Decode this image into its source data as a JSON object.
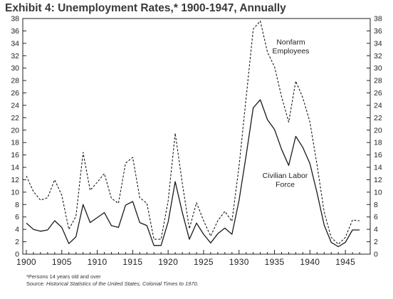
{
  "title": "Exhibit 4: Unemployment Rates,* 1900-1947, Annually",
  "footnote": "*Persons 14 years old and over",
  "source": {
    "prefix": "Source: ",
    "title": "Historical Statistics of the United States, Colonial Times to 1970",
    "suffix": "."
  },
  "colors": {
    "line": "#1a1a1a",
    "axis": "#222222"
  },
  "chart_data": {
    "type": "line",
    "title": "Exhibit 4: Unemployment Rates,* 1900-1947, Annually",
    "xlabel": "",
    "ylabel": "",
    "xlim": [
      1899.5,
      1948.5
    ],
    "ylim": [
      0,
      38
    ],
    "y_ticks": [
      0,
      2,
      4,
      6,
      8,
      10,
      12,
      14,
      16,
      18,
      20,
      22,
      24,
      26,
      28,
      30,
      32,
      34,
      36,
      38
    ],
    "x_ticks": [
      1900,
      1905,
      1910,
      1915,
      1920,
      1925,
      1930,
      1935,
      1940,
      1945
    ],
    "y_axis_both_sides": true,
    "grid": false,
    "x": [
      1900,
      1901,
      1902,
      1903,
      1904,
      1905,
      1906,
      1907,
      1908,
      1909,
      1910,
      1911,
      1912,
      1913,
      1914,
      1915,
      1916,
      1917,
      1918,
      1919,
      1920,
      1921,
      1922,
      1923,
      1924,
      1925,
      1926,
      1927,
      1928,
      1929,
      1930,
      1931,
      1932,
      1933,
      1934,
      1935,
      1936,
      1937,
      1938,
      1939,
      1940,
      1941,
      1942,
      1943,
      1944,
      1945,
      1946,
      1947
    ],
    "series": [
      {
        "name": "Nonfarm Employees",
        "label_lines": [
          "Nonfarm",
          "Employees"
        ],
        "style": "dashed",
        "values": [
          12.6,
          10.1,
          8.7,
          9.1,
          12.0,
          9.5,
          4.0,
          6.1,
          16.4,
          10.3,
          11.6,
          13.0,
          9.0,
          8.2,
          14.7,
          15.6,
          9.1,
          8.2,
          2.4,
          2.4,
          8.6,
          19.5,
          11.4,
          4.1,
          8.3,
          5.4,
          2.9,
          5.4,
          6.9,
          5.3,
          14.2,
          25.2,
          36.3,
          37.6,
          32.6,
          30.2,
          25.4,
          21.3,
          27.9,
          25.2,
          21.3,
          14.4,
          6.8,
          2.7,
          1.6,
          2.7,
          5.5,
          5.4
        ]
      },
      {
        "name": "Civilian Labor Force",
        "label_lines": [
          "Civilian Labor",
          "Force"
        ],
        "style": "solid",
        "values": [
          5.0,
          4.0,
          3.7,
          3.9,
          5.4,
          4.3,
          1.7,
          2.8,
          8.0,
          5.1,
          5.9,
          6.7,
          4.6,
          4.3,
          7.9,
          8.5,
          5.1,
          4.6,
          1.4,
          1.4,
          5.2,
          11.7,
          6.7,
          2.4,
          5.0,
          3.2,
          1.8,
          3.3,
          4.2,
          3.2,
          8.7,
          15.9,
          23.6,
          24.9,
          21.7,
          20.1,
          16.9,
          14.3,
          19.0,
          17.2,
          14.6,
          9.9,
          4.7,
          1.9,
          1.2,
          1.9,
          3.9,
          3.9
        ]
      }
    ]
  }
}
